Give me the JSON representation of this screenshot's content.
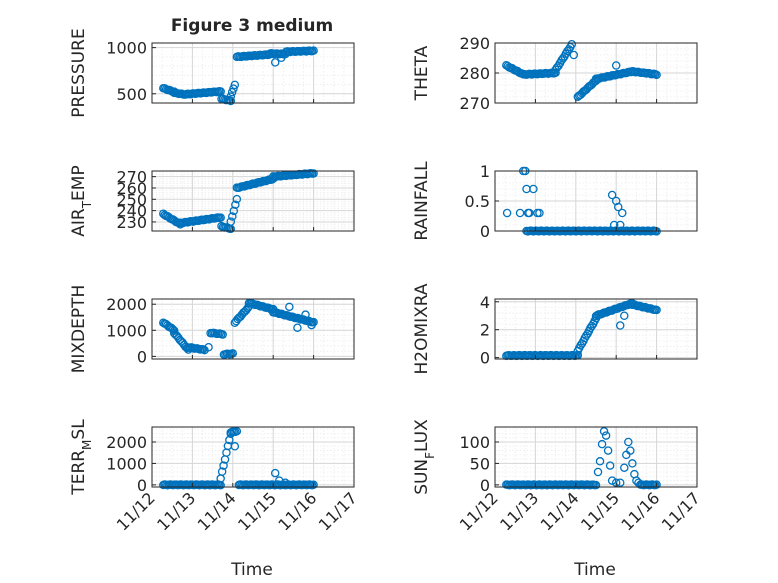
{
  "figure": {
    "title": "Figure 3 medium"
  },
  "colors": {
    "marker": "#0072BD",
    "axis": "#262626",
    "grid": "#d6d6d6",
    "minor_grid": "#ebebeb"
  },
  "x_axis": {
    "tick_labels": [
      "11/12",
      "11/13",
      "11/14",
      "11/15",
      "11/16",
      "11/17"
    ],
    "label": "Time"
  },
  "chart_data": [
    {
      "type": "scatter",
      "ylabel": "PRESSURE",
      "ylim": [
        400,
        1050
      ],
      "yticks": [
        500,
        1000
      ],
      "grid": true,
      "xlim": [
        0,
        5
      ],
      "segments": [
        {
          "x0": 0.28,
          "x1": 0.55,
          "y0": 560,
          "y1": 520
        },
        {
          "x0": 0.55,
          "x1": 0.85,
          "y0": 510,
          "y1": 490
        },
        {
          "x0": 0.85,
          "x1": 1.7,
          "y0": 495,
          "y1": 525
        },
        {
          "x0": 1.72,
          "x1": 1.95,
          "y0": 445,
          "y1": 425
        },
        {
          "x0": 1.95,
          "x1": 2.05,
          "y0": 470,
          "y1": 600
        },
        {
          "x0": 2.1,
          "x1": 2.9,
          "y0": 900,
          "y1": 925
        },
        {
          "x0": 2.92,
          "x1": 3.3,
          "y0": 935,
          "y1": 930
        },
        {
          "x0": 3.32,
          "x1": 4.0,
          "y0": 955,
          "y1": 965
        }
      ],
      "extra": [
        [
          3.05,
          840
        ],
        [
          3.2,
          890
        ]
      ]
    },
    {
      "type": "scatter",
      "ylabel": "THETA",
      "ylim": [
        270,
        290
      ],
      "yticks": [
        270,
        280,
        290
      ],
      "grid": true,
      "xlim": [
        0,
        5
      ],
      "segments": [
        {
          "x0": 0.28,
          "x1": 0.7,
          "y0": 282.5,
          "y1": 279.5
        },
        {
          "x0": 0.7,
          "x1": 1.5,
          "y0": 279.5,
          "y1": 280
        },
        {
          "x0": 1.5,
          "x1": 1.9,
          "y0": 281,
          "y1": 289.5
        },
        {
          "x0": 2.05,
          "x1": 2.5,
          "y0": 272,
          "y1": 277.5
        },
        {
          "x0": 2.5,
          "x1": 3.4,
          "y0": 278,
          "y1": 280.5
        },
        {
          "x0": 3.4,
          "x1": 4.0,
          "y0": 280.5,
          "y1": 279.5
        }
      ],
      "extra": [
        [
          1.95,
          286
        ],
        [
          3.0,
          282.5
        ]
      ]
    },
    {
      "type": "scatter",
      "ylabel": "AIR_TEMP",
      "ylim": [
        222,
        275
      ],
      "yticks": [
        230,
        240,
        250,
        260,
        270
      ],
      "grid": true,
      "xlim": [
        0,
        5
      ],
      "segments": [
        {
          "x0": 0.28,
          "x1": 0.7,
          "y0": 237,
          "y1": 228
        },
        {
          "x0": 0.7,
          "x1": 1.7,
          "y0": 229,
          "y1": 234
        },
        {
          "x0": 1.72,
          "x1": 1.95,
          "y0": 226,
          "y1": 224
        },
        {
          "x0": 1.95,
          "x1": 2.1,
          "y0": 230,
          "y1": 250
        },
        {
          "x0": 2.1,
          "x1": 3.0,
          "y0": 260,
          "y1": 268
        },
        {
          "x0": 3.0,
          "x1": 4.0,
          "y0": 270,
          "y1": 273
        }
      ],
      "extra": []
    },
    {
      "type": "scatter",
      "ylabel": "RAINFALL",
      "ylim": [
        0,
        1
      ],
      "yticks": [
        0,
        0.5,
        1
      ],
      "grid": true,
      "xlim": [
        0,
        5
      ],
      "segments": [
        {
          "x0": 0.78,
          "x1": 4.0,
          "y0": 0,
          "y1": 0
        }
      ],
      "extra": [
        [
          0.3,
          0.3
        ],
        [
          0.62,
          0.3
        ],
        [
          0.7,
          1.0
        ],
        [
          0.75,
          1.0
        ],
        [
          0.78,
          0.7
        ],
        [
          0.85,
          0.3
        ],
        [
          0.95,
          0.7
        ],
        [
          0.82,
          0.3
        ],
        [
          1.05,
          0.3
        ],
        [
          1.1,
          0.3
        ],
        [
          2.9,
          0.6
        ],
        [
          3.0,
          0.5
        ],
        [
          3.05,
          0.4
        ],
        [
          3.15,
          0.3
        ],
        [
          2.95,
          0.1
        ],
        [
          3.1,
          0.1
        ]
      ]
    },
    {
      "type": "scatter",
      "ylabel": "MIXDEPTH",
      "ylim": [
        -100,
        2200
      ],
      "yticks": [
        0,
        1000,
        2000
      ],
      "grid": true,
      "xlim": [
        0,
        5
      ],
      "segments": [
        {
          "x0": 0.28,
          "x1": 0.55,
          "y0": 1300,
          "y1": 1000
        },
        {
          "x0": 0.55,
          "x1": 0.9,
          "y0": 900,
          "y1": 250
        },
        {
          "x0": 0.9,
          "x1": 1.3,
          "y0": 350,
          "y1": 250
        },
        {
          "x0": 1.45,
          "x1": 1.75,
          "y0": 900,
          "y1": 850
        },
        {
          "x0": 1.78,
          "x1": 2.0,
          "y0": 80,
          "y1": 100
        },
        {
          "x0": 2.05,
          "x1": 2.4,
          "y0": 1300,
          "y1": 1900
        },
        {
          "x0": 2.4,
          "x1": 3.0,
          "y0": 2050,
          "y1": 1800
        },
        {
          "x0": 3.0,
          "x1": 4.0,
          "y0": 1700,
          "y1": 1300
        }
      ],
      "extra": [
        [
          3.4,
          1900
        ],
        [
          3.6,
          1100
        ],
        [
          3.8,
          1600
        ],
        [
          3.95,
          1200
        ],
        [
          1.4,
          350
        ]
      ]
    },
    {
      "type": "scatter",
      "ylabel": "H2OMIXRA",
      "ylim": [
        -0.1,
        4.2
      ],
      "yticks": [
        0,
        2,
        4
      ],
      "grid": true,
      "xlim": [
        0,
        5
      ],
      "segments": [
        {
          "x0": 0.28,
          "x1": 2.05,
          "y0": 0.15,
          "y1": 0.15
        },
        {
          "x0": 2.05,
          "x1": 2.5,
          "y0": 0.5,
          "y1": 2.8
        },
        {
          "x0": 2.5,
          "x1": 3.4,
          "y0": 3.0,
          "y1": 3.9
        },
        {
          "x0": 3.4,
          "x1": 4.0,
          "y0": 3.8,
          "y1": 3.4
        }
      ],
      "extra": [
        [
          3.1,
          2.3
        ],
        [
          3.2,
          3.0
        ]
      ]
    },
    {
      "type": "scatter",
      "ylabel": "TERR_MSL",
      "ylim": [
        -100,
        2700
      ],
      "yticks": [
        0,
        1000,
        2000
      ],
      "grid": true,
      "xlim": [
        0,
        5
      ],
      "segments": [
        {
          "x0": 0.28,
          "x1": 1.7,
          "y0": 0,
          "y1": 0
        },
        {
          "x0": 1.7,
          "x1": 1.95,
          "y0": 300,
          "y1": 2400
        },
        {
          "x0": 1.95,
          "x1": 2.1,
          "y0": 2450,
          "y1": 2500
        },
        {
          "x0": 2.15,
          "x1": 4.0,
          "y0": 0,
          "y1": 0
        }
      ],
      "extra": [
        [
          2.05,
          1800
        ],
        [
          3.05,
          550
        ],
        [
          3.15,
          200
        ],
        [
          3.3,
          100
        ]
      ]
    },
    {
      "type": "scatter",
      "ylabel": "SUN_FLUX",
      "ylim": [
        -5,
        135
      ],
      "yticks": [
        0,
        50,
        100
      ],
      "grid": true,
      "xlim": [
        0,
        5
      ],
      "segments": [
        {
          "x0": 0.28,
          "x1": 2.5,
          "y0": 0,
          "y1": 0
        },
        {
          "x0": 3.6,
          "x1": 4.0,
          "y0": 0,
          "y1": 0
        }
      ],
      "extra": [
        [
          2.55,
          30
        ],
        [
          2.6,
          55
        ],
        [
          2.65,
          95
        ],
        [
          2.7,
          125
        ],
        [
          2.75,
          115
        ],
        [
          2.8,
          80
        ],
        [
          2.85,
          45
        ],
        [
          2.9,
          10
        ],
        [
          3.0,
          5
        ],
        [
          3.1,
          5
        ],
        [
          3.2,
          40
        ],
        [
          3.25,
          70
        ],
        [
          3.3,
          100
        ],
        [
          3.35,
          80
        ],
        [
          3.4,
          50
        ],
        [
          3.45,
          25
        ],
        [
          3.5,
          10
        ],
        [
          3.55,
          5
        ]
      ]
    }
  ]
}
